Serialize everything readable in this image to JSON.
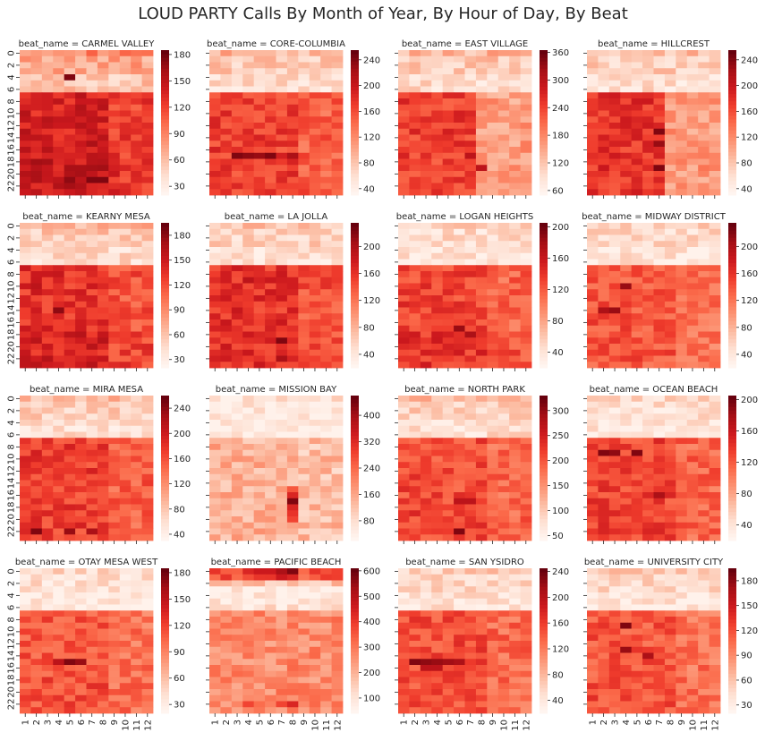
{
  "figure": {
    "title": "LOUD PARTY Calls By Month of Year, By Hour of Day, By Beat"
  },
  "axes": {
    "y_tick_labels": [
      "0",
      "2",
      "4",
      "6",
      "8",
      "10",
      "12",
      "14",
      "16",
      "18",
      "20",
      "22"
    ],
    "x_tick_labels": [
      "1",
      "2",
      "3",
      "4",
      "5",
      "6",
      "7",
      "8",
      "9",
      "10",
      "11",
      "12"
    ]
  },
  "chart_data": [
    {
      "type": "heatmap",
      "title": "beat_name = CARMEL VALLEY",
      "rows": 24,
      "cols": 12,
      "vmin": 20,
      "vmax": 185,
      "colorbar_ticks": [
        30,
        60,
        90,
        120,
        150,
        180
      ],
      "pattern": "day-low",
      "day_level": 0.35,
      "night_level": 0.72,
      "eve_boost": 0.05,
      "peak_cells": [
        [
          4,
          4,
          0.95
        ],
        [
          15,
          6,
          0.85
        ],
        [
          21,
          4,
          0.92
        ],
        [
          21,
          6,
          0.95
        ],
        [
          21,
          7,
          0.95
        ]
      ]
    },
    {
      "type": "heatmap",
      "title": "beat_name = CORE-COLUMBIA",
      "rows": 24,
      "cols": 12,
      "vmin": 30,
      "vmax": 255,
      "colorbar_ticks": [
        40,
        80,
        120,
        160,
        200,
        240
      ],
      "pattern": "day-low",
      "day_level": 0.22,
      "night_level": 0.62,
      "eve_boost": 0.0,
      "peak_row": 17,
      "peak_cells": [
        [
          17,
          2,
          0.95
        ],
        [
          17,
          3,
          0.92
        ],
        [
          17,
          4,
          0.9
        ],
        [
          17,
          5,
          0.95
        ],
        [
          17,
          7,
          0.85
        ]
      ]
    },
    {
      "type": "heatmap",
      "title": "beat_name = EAST VILLAGE",
      "rows": 24,
      "cols": 12,
      "vmin": 50,
      "vmax": 365,
      "colorbar_ticks": [
        60,
        120,
        180,
        240,
        300,
        360
      ],
      "pattern": "day-low-early-months",
      "day_level": 0.22,
      "night_level": 0.62,
      "eve_boost": 0.0,
      "peak_cells": [
        [
          17,
          6,
          0.8
        ],
        [
          19,
          7,
          0.8
        ]
      ]
    },
    {
      "type": "heatmap",
      "title": "beat_name = HILLCREST",
      "rows": 24,
      "cols": 12,
      "vmin": 30,
      "vmax": 255,
      "colorbar_ticks": [
        40,
        80,
        120,
        160,
        200,
        240
      ],
      "pattern": "day-low-early-months",
      "day_level": 0.2,
      "night_level": 0.65,
      "eve_boost": 0.0,
      "peak_cells": [
        [
          13,
          6,
          0.95
        ],
        [
          15,
          6,
          0.9
        ],
        [
          19,
          6,
          0.95
        ]
      ]
    },
    {
      "type": "heatmap",
      "title": "beat_name = KEARNY MESA",
      "rows": 24,
      "cols": 12,
      "vmin": 20,
      "vmax": 195,
      "colorbar_ticks": [
        30,
        60,
        90,
        120,
        150,
        180
      ],
      "pattern": "day-low",
      "day_level": 0.22,
      "night_level": 0.66,
      "eve_boost": 0.05,
      "peak_cells": [
        [
          14,
          3,
          0.92
        ],
        [
          10,
          1,
          0.8
        ]
      ]
    },
    {
      "type": "heatmap",
      "title": "beat_name = LA JOLLA",
      "rows": 24,
      "cols": 12,
      "vmin": 20,
      "vmax": 235,
      "colorbar_ticks": [
        40,
        80,
        120,
        160,
        200
      ],
      "pattern": "day-low",
      "day_level": 0.18,
      "night_level": 0.66,
      "eve_boost": 0.0,
      "peak_cells": [
        [
          19,
          6,
          0.95
        ],
        [
          22,
          6,
          0.85
        ],
        [
          9,
          3,
          0.8
        ]
      ]
    },
    {
      "type": "heatmap",
      "title": "beat_name = LOGAN HEIGHTS",
      "rows": 24,
      "cols": 12,
      "vmin": 20,
      "vmax": 205,
      "colorbar_ticks": [
        40,
        80,
        120,
        160,
        200
      ],
      "pattern": "day-low",
      "day_level": 0.15,
      "night_level": 0.6,
      "eve_boost": 0.05,
      "peak_cells": [
        [
          17,
          5,
          0.9
        ],
        [
          18,
          6,
          0.85
        ]
      ]
    },
    {
      "type": "heatmap",
      "title": "beat_name = MIDWAY DISTRICT",
      "rows": 24,
      "cols": 12,
      "vmin": 20,
      "vmax": 235,
      "colorbar_ticks": [
        40,
        80,
        120,
        160,
        200
      ],
      "pattern": "day-low",
      "day_level": 0.15,
      "night_level": 0.55,
      "eve_boost": 0.0,
      "peak_cells": [
        [
          10,
          3,
          0.9
        ],
        [
          14,
          1,
          0.85
        ],
        [
          14,
          2,
          0.9
        ]
      ]
    },
    {
      "type": "heatmap",
      "title": "beat_name = MIRA MESA",
      "rows": 24,
      "cols": 12,
      "vmin": 30,
      "vmax": 260,
      "colorbar_ticks": [
        40,
        80,
        120,
        160,
        200,
        240
      ],
      "pattern": "day-low",
      "day_level": 0.2,
      "night_level": 0.62,
      "eve_boost": 0.0,
      "peak_cells": [
        [
          22,
          1,
          0.95
        ],
        [
          22,
          4,
          0.9
        ],
        [
          22,
          6,
          0.85
        ]
      ]
    },
    {
      "type": "heatmap",
      "title": "beat_name = MISSION BAY",
      "rows": 24,
      "cols": 12,
      "vmin": 20,
      "vmax": 460,
      "colorbar_ticks": [
        80,
        160,
        240,
        320,
        400
      ],
      "pattern": "day-low",
      "day_level": 0.08,
      "night_level": 0.28,
      "eve_boost": 0.0,
      "peak_cells": [
        [
          17,
          7,
          0.95
        ],
        [
          16,
          7,
          0.7
        ],
        [
          18,
          7,
          0.7
        ],
        [
          19,
          7,
          0.65
        ],
        [
          15,
          7,
          0.55
        ],
        [
          20,
          7,
          0.6
        ]
      ]
    },
    {
      "type": "heatmap",
      "title": "beat_name = NORTH PARK",
      "rows": 24,
      "cols": 12,
      "vmin": 40,
      "vmax": 330,
      "colorbar_ticks": [
        50,
        100,
        150,
        200,
        250,
        300
      ],
      "pattern": "day-low",
      "day_level": 0.2,
      "night_level": 0.58,
      "eve_boost": 0.02,
      "peak_cells": [
        [
          22,
          5,
          0.95
        ],
        [
          17,
          5,
          0.8
        ],
        [
          17,
          6,
          0.8
        ]
      ]
    },
    {
      "type": "heatmap",
      "title": "beat_name = OCEAN BEACH",
      "rows": 24,
      "cols": 12,
      "vmin": 20,
      "vmax": 205,
      "colorbar_ticks": [
        40,
        80,
        120,
        160,
        200
      ],
      "pattern": "day-low",
      "day_level": 0.12,
      "night_level": 0.6,
      "eve_boost": 0.0,
      "peak_cells": [
        [
          9,
          1,
          0.95
        ],
        [
          9,
          2,
          0.92
        ],
        [
          9,
          4,
          0.95
        ],
        [
          16,
          6,
          0.85
        ]
      ]
    },
    {
      "type": "heatmap",
      "title": "beat_name = OTAY MESA WEST",
      "rows": 24,
      "cols": 12,
      "vmin": 20,
      "vmax": 185,
      "colorbar_ticks": [
        30,
        60,
        90,
        120,
        150,
        180
      ],
      "pattern": "day-low",
      "day_level": 0.12,
      "night_level": 0.55,
      "eve_boost": 0.02,
      "peak_cells": [
        [
          15,
          4,
          0.95
        ],
        [
          15,
          5,
          0.9
        ],
        [
          15,
          3,
          0.8
        ]
      ]
    },
    {
      "type": "heatmap",
      "title": "beat_name = PACIFIC BEACH",
      "rows": 24,
      "cols": 12,
      "vmin": 40,
      "vmax": 610,
      "colorbar_ticks": [
        100,
        200,
        300,
        400,
        500,
        600
      ],
      "pattern": "pacific",
      "day_level": 0.1,
      "night_level": 0.4,
      "eve_boost": 0.0,
      "peak_cells": [
        [
          0,
          7,
          0.95
        ],
        [
          0,
          6,
          0.85
        ],
        [
          0,
          5,
          0.75
        ],
        [
          0,
          4,
          0.75
        ],
        [
          0,
          3,
          0.7
        ],
        [
          1,
          5,
          0.65
        ],
        [
          1,
          6,
          0.75
        ],
        [
          1,
          7,
          0.7
        ],
        [
          22,
          3,
          0.6
        ],
        [
          22,
          6,
          0.6
        ],
        [
          22,
          7,
          0.7
        ]
      ]
    },
    {
      "type": "heatmap",
      "title": "beat_name = SAN YSIDRO",
      "rows": 24,
      "cols": 12,
      "vmin": 20,
      "vmax": 245,
      "colorbar_ticks": [
        40,
        80,
        120,
        160,
        200,
        240
      ],
      "pattern": "day-low",
      "day_level": 0.15,
      "night_level": 0.58,
      "eve_boost": 0.0,
      "peak_row": 15,
      "peak_cells": [
        [
          15,
          1,
          0.95
        ],
        [
          15,
          2,
          0.92
        ],
        [
          15,
          3,
          0.9
        ],
        [
          15,
          4,
          0.88
        ],
        [
          15,
          5,
          0.85
        ],
        [
          16,
          2,
          0.8
        ],
        [
          16,
          3,
          0.8
        ]
      ]
    },
    {
      "type": "heatmap",
      "title": "beat_name = UNIVERSITY CITY",
      "rows": 24,
      "cols": 12,
      "vmin": 20,
      "vmax": 195,
      "colorbar_ticks": [
        30,
        60,
        90,
        120,
        150,
        180
      ],
      "pattern": "day-low",
      "day_level": 0.15,
      "night_level": 0.55,
      "eve_boost": 0.02,
      "peak_cells": [
        [
          9,
          3,
          0.95
        ],
        [
          13,
          3,
          0.9
        ],
        [
          14,
          5,
          0.85
        ]
      ]
    }
  ]
}
